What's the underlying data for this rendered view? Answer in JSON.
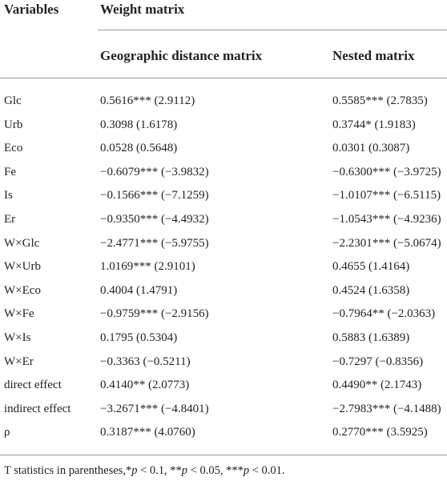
{
  "table": {
    "header": [
      "Variables",
      "Weight matrix"
    ],
    "subheader": [
      "Geographic distance matrix",
      "Nested matrix"
    ],
    "rows": [
      [
        "Glc",
        "0.5616*** (2.9112)",
        "0.5585*** (2.7835)"
      ],
      [
        "Urb",
        "0.3098 (1.6178)",
        "0.3744* (1.9183)"
      ],
      [
        "Eco",
        "0.0528 (0.5648)",
        "0.0301 (0.3087)"
      ],
      [
        "Fe",
        "−0.6079*** (−3.9832)",
        "−0.6300*** (−3.9725)"
      ],
      [
        "Is",
        "−0.1566*** (−7.1259)",
        "−1.0107*** (−6.5115)"
      ],
      [
        "Er",
        "−0.9350*** (−4.4932)",
        "−1.0543*** (−4.9236)"
      ],
      [
        "W×Glc",
        "−2.4771*** (−5.9755)",
        "−2.2301*** (−5.0674)"
      ],
      [
        "W×Urb",
        "1.0169*** (2.9101)",
        "0.4655 (1.4164)"
      ],
      [
        "W×Eco",
        "0.4004 (1.4791)",
        "0.4524 (1.6358)"
      ],
      [
        "W×Fe",
        "−0.9759*** (−2.9156)",
        "−0.7964** (−2.0363)"
      ],
      [
        "W×Is",
        "0.1795 (0.5304)",
        "0.5883 (1.6389)"
      ],
      [
        "W×Er",
        "−0.3363 (−0.5211)",
        "−0.7297 (−0.8356)"
      ],
      [
        "direct effect",
        "0.4140** (2.0773)",
        "0.4490** (2.1743)"
      ],
      [
        "indirect effect",
        "−3.2671*** (−4.8401)",
        "−2.7983*** (−4.1488)"
      ],
      [
        "ρ",
        "0.3187*** (4.0760)",
        "0.2770*** (3.5925)"
      ]
    ],
    "footnote": [
      "T statistics in parentheses,*",
      "p",
      " < 0.1, **",
      "p",
      " < 0.05, ***",
      "p",
      " < 0.01."
    ]
  }
}
